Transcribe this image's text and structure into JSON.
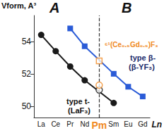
{
  "chart_data": {
    "type": "line",
    "y_label": "Vform, A³",
    "x_label": "Ln",
    "categories": [
      "La",
      "Ce",
      "Pr",
      "Nd",
      "Pm",
      "Sm",
      "Eu",
      "Gd"
    ],
    "series": [
      {
        "type": "line",
        "color": "#1a1a1a",
        "marker": "circle",
        "line_style": "solid",
        "values": [
          54.4,
          53.4,
          52.45,
          51.6,
          null,
          50.2,
          null,
          null
        ]
      },
      {
        "type": "scatter",
        "color": "#1a1a1a",
        "marker": "circle-open",
        "values": [
          null,
          null,
          null,
          null,
          51.0,
          null,
          null,
          null
        ]
      },
      {
        "type": "line",
        "color": "#2a5bd7",
        "marker": "square",
        "line_style": "solid",
        "values": [
          null,
          null,
          54.8,
          53.7,
          null,
          52.0,
          51.2,
          50.6
        ]
      },
      {
        "type": "scatter",
        "color": "#f08a24",
        "marker": "circle-open",
        "values": [
          null,
          null,
          null,
          null,
          51.3,
          null,
          null,
          null
        ]
      },
      {
        "type": "scatter",
        "color": "#f08a24",
        "marker": "square-open",
        "values": [
          null,
          null,
          null,
          null,
          52.8,
          null,
          null,
          null
        ]
      }
    ],
    "ylim": [
      49.3,
      55.6
    ],
    "yticks": [
      50,
      52,
      54
    ],
    "grid": false,
    "annotations": [
      "A",
      "B",
      "type t-",
      "(LaF₃)",
      "type β-",
      "(β-YF₃)",
      "⁶¹(Ce₀.₅Gd₀.₅)F₃"
    ]
  }
}
